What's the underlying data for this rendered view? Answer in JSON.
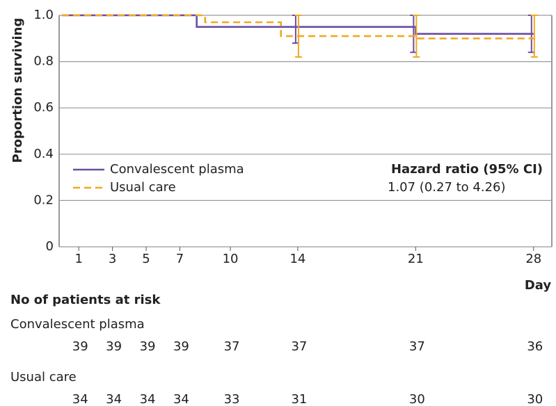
{
  "chart_data": {
    "type": "step",
    "ylabel": "Proportion surviving",
    "xlabel": "Day",
    "xlim": [
      0,
      29
    ],
    "xticks": [
      1,
      3,
      5,
      7,
      10,
      14,
      21,
      28
    ],
    "ylim": [
      0,
      1.0
    ],
    "yticks": [
      0,
      {
        "value": 0.2,
        "label": "0.2"
      },
      {
        "value": 0.4,
        "label": "0.4"
      },
      {
        "value": 0.6,
        "label": "0.6"
      },
      {
        "value": 0.8,
        "label": "0.8"
      },
      {
        "value": 1.0,
        "label": "1.0"
      }
    ],
    "grid": true,
    "legend": "center left",
    "series": [
      {
        "name": "Convalescent plasma",
        "color": "#6a4ea3",
        "dash": false,
        "x": [
          0,
          8,
          21,
          28
        ],
        "values": [
          1.0,
          0.95,
          0.92,
          0.92
        ],
        "error_bars": [
          {
            "x": 14,
            "low": 0.88,
            "high": 1.0
          },
          {
            "x": 21,
            "low": 0.84,
            "high": 1.0
          },
          {
            "x": 28,
            "low": 0.84,
            "high": 1.0
          }
        ]
      },
      {
        "name": "Usual care",
        "color": "#f2a81d",
        "dash": true,
        "x": [
          0,
          8.5,
          13,
          21,
          28
        ],
        "values": [
          1.0,
          0.97,
          0.91,
          0.9,
          0.9
        ],
        "error_bars": [
          {
            "x": 14,
            "low": 0.82,
            "high": 1.0
          },
          {
            "x": 21,
            "low": 0.82,
            "high": 1.0
          },
          {
            "x": 28,
            "low": 0.82,
            "high": 1.0
          }
        ]
      }
    ],
    "annotation": {
      "title": "Hazard ratio (95% CI)",
      "text": "1.07 (0.27 to 4.26)"
    },
    "at_risk": {
      "title": "No of patients at risk",
      "rows": [
        {
          "name": "Convalescent plasma",
          "values": [
            39,
            39,
            39,
            39,
            37,
            37,
            37,
            36
          ]
        },
        {
          "name": "Usual care",
          "values": [
            34,
            34,
            34,
            34,
            33,
            31,
            30,
            30
          ]
        }
      ]
    }
  }
}
